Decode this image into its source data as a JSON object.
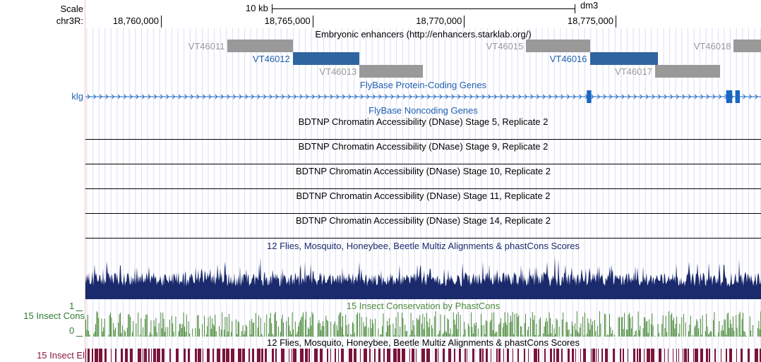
{
  "ruler": {
    "scale_label": "Scale",
    "scale_bar_text": "10 kb",
    "assembly": "dm3",
    "chrom_label": "chr3R:",
    "positions": [
      "18,760,000",
      "18,765,000",
      "18,770,000",
      "18,775,000"
    ]
  },
  "tracks": {
    "enhancers": {
      "title": "Embryonic enhancers (http://enhancers.starklab.org/)",
      "items": [
        {
          "name": "VT46011",
          "row": 0,
          "start": 18762200,
          "end": 18764350,
          "selected": false
        },
        {
          "name": "VT46012",
          "row": 1,
          "start": 18764350,
          "end": 18766550,
          "selected": true
        },
        {
          "name": "VT46013",
          "row": 2,
          "start": 18766550,
          "end": 18768650,
          "selected": false
        },
        {
          "name": "VT46015",
          "row": 0,
          "start": 18772050,
          "end": 18774150,
          "selected": false
        },
        {
          "name": "VT46016",
          "row": 1,
          "start": 18774150,
          "end": 18776400,
          "selected": true
        },
        {
          "name": "VT46017",
          "row": 2,
          "start": 18776300,
          "end": 18778450,
          "selected": false
        },
        {
          "name": "VT46018",
          "row": 0,
          "start": 18778900,
          "end": 18780600,
          "selected": false
        }
      ]
    },
    "protein_coding": {
      "title": "FlyBase Protein-Coding Genes",
      "gene_label": "klg",
      "exons": [
        {
          "start": 18774050,
          "end": 18774200
        },
        {
          "start": 18778650,
          "end": 18778850
        },
        {
          "start": 18778950,
          "end": 18779100
        }
      ]
    },
    "noncoding": {
      "title": "FlyBase Noncoding Genes"
    },
    "dnase": [
      {
        "title": "BDTNP Chromatin Accessibility (DNase) Stage 5, Replicate 2",
        "color": "#3aa03a"
      },
      {
        "title": "BDTNP Chromatin Accessibility (DNase) Stage 9, Replicate 2",
        "color": "#e8802a"
      },
      {
        "title": "BDTNP Chromatin Accessibility (DNase) Stage 10, Replicate 2",
        "color": "#8b1a1a"
      },
      {
        "title": "BDTNP Chromatin Accessibility (DNase) Stage 11, Replicate 2",
        "color": "#40a8d8"
      },
      {
        "title": "BDTNP Chromatin Accessibility (DNase) Stage 14, Replicate 2",
        "color": "#7b3fb0"
      }
    ],
    "multiz": {
      "title": "12 Flies, Mosquito, Honeybee, Beetle Multiz Alignments & phastCons Scores"
    },
    "cons15": {
      "title": "15 Insect Conservation by PhastCons",
      "label": "15 Insect Cons",
      "axis_max": "1",
      "axis_min": "0"
    },
    "el15": {
      "title": "12 Flies, Mosquito, Honeybee, Beetle Multiz Alignments & phastCons Scores",
      "label": "15 Insect El"
    }
  },
  "colors": {
    "label_blue": "#2060b0",
    "item_gray": "#999999",
    "item_blue": "#2e64a0",
    "gene_blue": "#1a66c0",
    "multiz": "#1a2a6c",
    "cons15": "#4a8a3a",
    "el15": "#7a1438",
    "cons_label": "#2e7d32",
    "el_label": "#8b1a3a"
  }
}
